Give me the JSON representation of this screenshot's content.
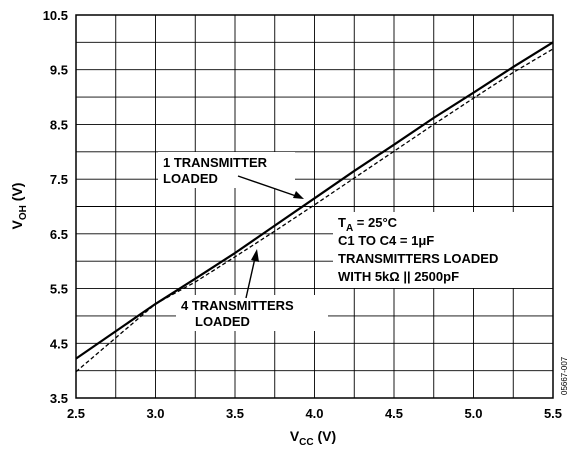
{
  "chart_data": {
    "type": "line",
    "xlabel": {
      "main": "V",
      "sub": "CC",
      "unit": " (V)"
    },
    "ylabel": {
      "main": "V",
      "sub": "OH",
      "unit": " (V)"
    },
    "xlim": [
      2.5,
      5.5
    ],
    "ylim": [
      3.5,
      10.5
    ],
    "x_ticks": [
      "2.5",
      "3.0",
      "3.5",
      "4.0",
      "4.5",
      "5.0",
      "5.5"
    ],
    "y_ticks": [
      "3.5",
      "4.5",
      "5.5",
      "6.5",
      "7.5",
      "8.5",
      "9.5",
      "10.5"
    ],
    "grid": true,
    "series": [
      {
        "name": "1 TRANSMITTER LOADED",
        "style": "solid",
        "x": [
          2.5,
          3.0,
          3.25,
          3.5,
          3.75,
          4.0,
          4.25,
          4.5,
          4.75,
          5.0,
          5.25,
          5.5
        ],
        "y": [
          4.22,
          5.22,
          5.68,
          6.15,
          6.65,
          7.15,
          7.65,
          8.13,
          8.62,
          9.08,
          9.55,
          10.0
        ]
      },
      {
        "name": "4 TRANSMITTERS LOADED",
        "style": "dashed",
        "x": [
          2.5,
          3.0,
          3.25,
          3.5,
          3.75,
          4.0,
          4.25,
          4.5,
          4.75,
          5.0,
          5.25,
          5.5
        ],
        "y": [
          3.98,
          5.22,
          5.62,
          6.08,
          6.55,
          7.03,
          7.52,
          8.01,
          8.5,
          8.98,
          9.45,
          9.88
        ]
      }
    ],
    "annotations": {
      "one_tx": [
        "1 TRANSMITTER",
        "LOADED"
      ],
      "four_tx": [
        "4 TRANSMITTERS",
        "LOADED"
      ],
      "conditions": {
        "ta_main": "T",
        "ta_sub": "A",
        "ta_rest": " = 25°C",
        "line2": "C1 TO C4 = 1μF",
        "line3": "TRANSMITTERS LOADED",
        "line4": "WITH 5kΩ || 2500pF"
      }
    },
    "figure_code": "05667-007"
  }
}
